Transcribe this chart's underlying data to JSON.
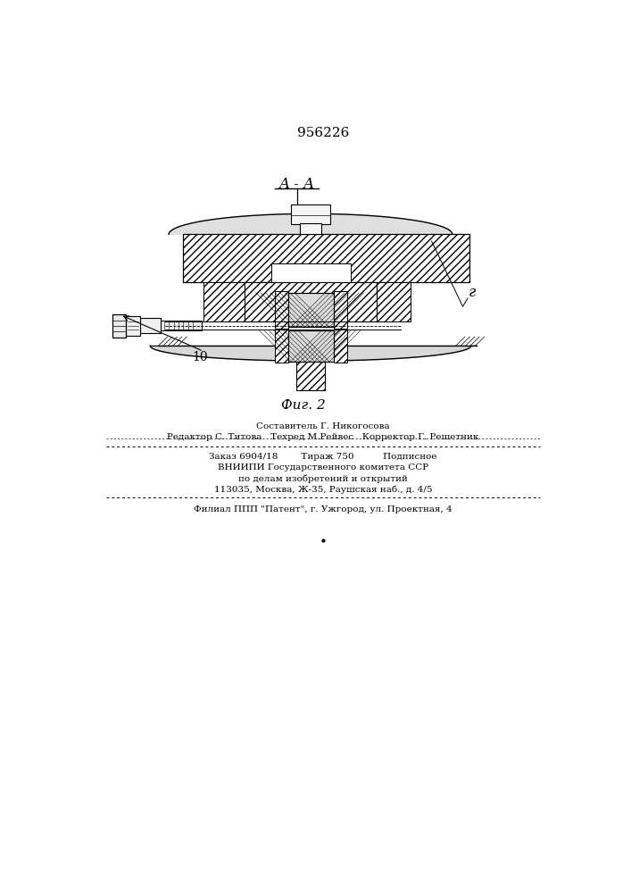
{
  "patent_number": "956226",
  "figure_label": "Фиг. 2",
  "section_label": "A - A",
  "part_label_r": "г",
  "part_label_10": "10",
  "bg_color": "#ffffff",
  "line_color": "#000000",
  "footer_line1": "Составитель Г. Никогосова",
  "footer_line2": "Редактор С. Титова   Техред М.Рейвес   Корректор Г. Решетник",
  "footer_line3": "Заказ 6904/18        Тираж 750          Подписное",
  "footer_line4": "ВНИИПИ Государственного комитета ССР",
  "footer_line5": "по делам изобретений и открытий",
  "footer_line6": "113035, Москва, Ж-35, Раушская наб., д. 4/5",
  "footer_line7": "Филиал ППП \"Патент\", г. Ужгород, ул. Проектная, 4"
}
